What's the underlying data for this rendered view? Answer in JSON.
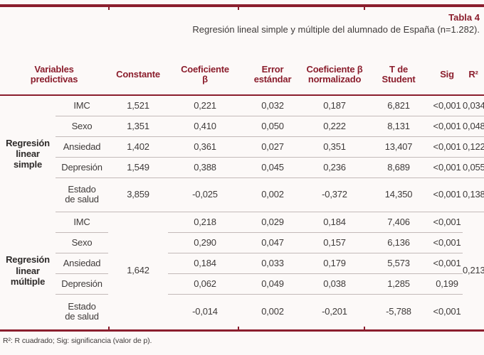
{
  "accent_color": "#8b1e2d",
  "separator_color": "#c3bab9",
  "title": {
    "label": "Tabla 4",
    "caption": "Regresión lineal simple y múltiple del alumnado de España (n=1.282)."
  },
  "table": {
    "header": [
      "Variables\npredictivas",
      "Constante",
      "Coeficiente\nβ",
      "Error\nestándar",
      "Coeficiente β\nnormalizado",
      "T de\nStudent",
      "Sig",
      "R²"
    ],
    "simple": {
      "group": "Regresión\nlinear\nsimple",
      "rows": [
        [
          "IMC",
          "1,521",
          "0,221",
          "0,032",
          "0,187",
          "6,821",
          "<0,001",
          "0,034"
        ],
        [
          "Sexo",
          "1,351",
          "0,410",
          "0,050",
          "0,222",
          "8,131",
          "<0,001",
          "0,048"
        ],
        [
          "Ansiedad",
          "1,402",
          "0,361",
          "0,027",
          "0,351",
          "13,407",
          "<0,001",
          "0,122"
        ],
        [
          "Depresión",
          "1,549",
          "0,388",
          "0,045",
          "0,236",
          "8,689",
          "<0,001",
          "0,055"
        ],
        [
          "Estado\nde salud",
          "3,859",
          "-0,025",
          "0,002",
          "-0,372",
          "14,350",
          "<0,001",
          "0,138"
        ]
      ]
    },
    "multiple": {
      "group": "Regresión\nlinear\nmúltiple",
      "constante": "1,642",
      "r2": "0,213",
      "rows": [
        [
          "IMC",
          "0,218",
          "0,029",
          "0,184",
          "7,406",
          "<0,001"
        ],
        [
          "Sexo",
          "0,290",
          "0,047",
          "0,157",
          "6,136",
          "<0,001"
        ],
        [
          "Ansiedad",
          "0,184",
          "0,033",
          "0,179",
          "5,573",
          "<0,001"
        ],
        [
          "Depresión",
          "0,062",
          "0,049",
          "0,038",
          "1,285",
          "0,199"
        ],
        [
          "Estado\nde salud",
          "-0,014",
          "0,002",
          "-0,201",
          "-5,788",
          "<0,001"
        ]
      ]
    }
  },
  "footnote": "R²: R cuadrado; Sig: significancia (valor de p)."
}
